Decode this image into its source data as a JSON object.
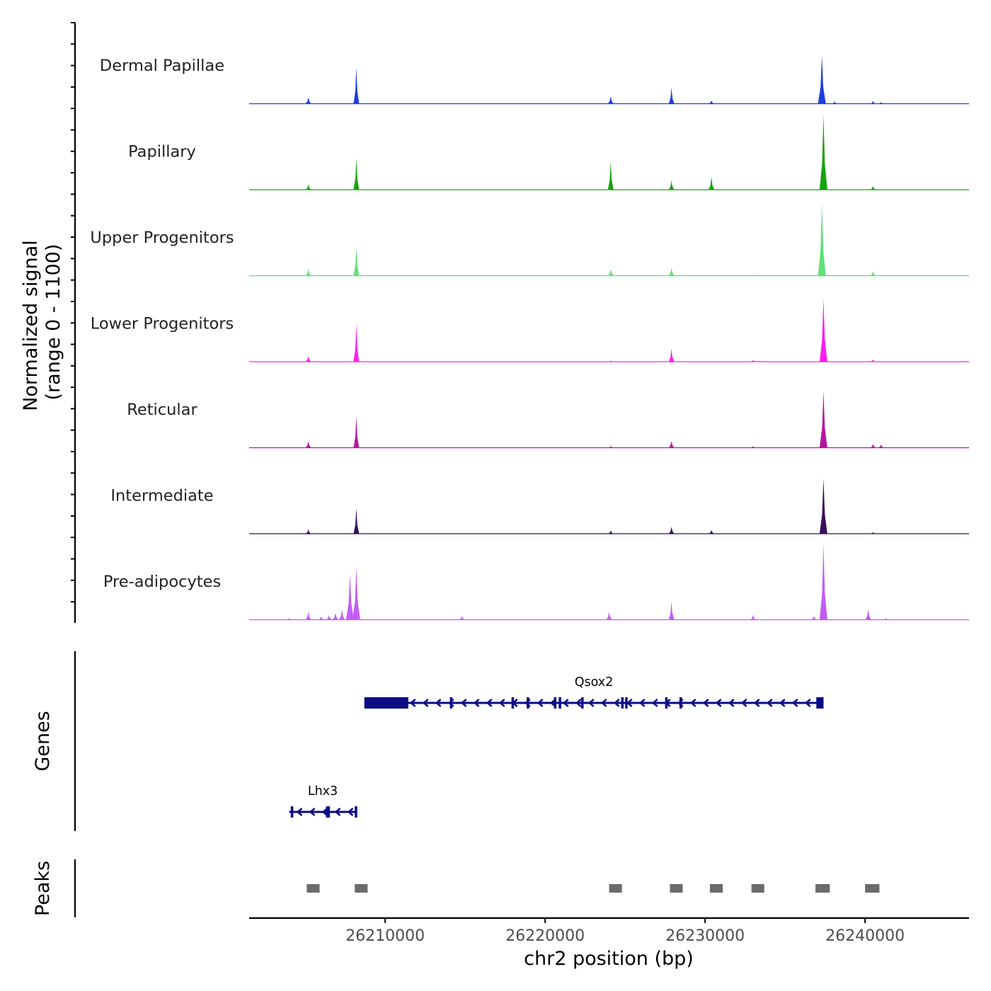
{
  "chart_data": {
    "type": "area",
    "title": "",
    "xlabel": "chr2 position (bp)",
    "ylabel_line1": "Normalized signal",
    "ylabel_line2": "(range 0 - 1100)",
    "xlim": [
      26201500,
      26246500
    ],
    "ylim": [
      0,
      1100
    ],
    "x_ticks": [
      26210000,
      26220000,
      26230000,
      26240000
    ],
    "x_tick_labels": [
      "26210000",
      "26220000",
      "26230000",
      "26240000"
    ],
    "series": [
      {
        "name": "Dermal Papillae",
        "color": "#1c3fe0",
        "peaks": [
          [
            26205200,
            120
          ],
          [
            26208200,
            680
          ],
          [
            26224100,
            140
          ],
          [
            26227900,
            300
          ],
          [
            26230400,
            60
          ],
          [
            26237300,
            900
          ],
          [
            26238100,
            40
          ],
          [
            26240500,
            50
          ],
          [
            26241000,
            30
          ]
        ]
      },
      {
        "name": "Papillary",
        "color": "#17a40e",
        "peaks": [
          [
            26205200,
            100
          ],
          [
            26208200,
            590
          ],
          [
            26224100,
            530
          ],
          [
            26227900,
            170
          ],
          [
            26230400,
            240
          ],
          [
            26237400,
            1400
          ],
          [
            26240500,
            70
          ]
        ]
      },
      {
        "name": "Upper Progenitors",
        "color": "#5fe176",
        "peaks": [
          [
            26205200,
            130
          ],
          [
            26208200,
            530
          ],
          [
            26224100,
            120
          ],
          [
            26227900,
            150
          ],
          [
            26233000,
            20
          ],
          [
            26237300,
            1350
          ],
          [
            26240500,
            80
          ]
        ]
      },
      {
        "name": "Lower Progenitors",
        "color": "#ff1cf2",
        "peaks": [
          [
            26205200,
            110
          ],
          [
            26208200,
            710
          ],
          [
            26224100,
            20
          ],
          [
            26227900,
            240
          ],
          [
            26233000,
            30
          ],
          [
            26237400,
            1180
          ],
          [
            26240500,
            40
          ]
        ]
      },
      {
        "name": "Reticular",
        "color": "#b3189f",
        "peaks": [
          [
            26205200,
            120
          ],
          [
            26208200,
            590
          ],
          [
            26224100,
            30
          ],
          [
            26227900,
            130
          ],
          [
            26233000,
            30
          ],
          [
            26237400,
            1060
          ],
          [
            26240500,
            70
          ],
          [
            26241000,
            60
          ]
        ]
      },
      {
        "name": "Intermediate",
        "color": "#3a0d5a",
        "peaks": [
          [
            26205200,
            80
          ],
          [
            26208200,
            480
          ],
          [
            26224100,
            60
          ],
          [
            26227900,
            130
          ],
          [
            26230400,
            70
          ],
          [
            26237400,
            1030
          ],
          [
            26240500,
            30
          ]
        ]
      },
      {
        "name": "Pre-adipocytes",
        "color": "#c45df5",
        "peaks": [
          [
            26204000,
            30
          ],
          [
            26205200,
            150
          ],
          [
            26206000,
            60
          ],
          [
            26206500,
            90
          ],
          [
            26206900,
            130
          ],
          [
            26207300,
            200
          ],
          [
            26207800,
            860
          ],
          [
            26208200,
            980
          ],
          [
            26214800,
            70
          ],
          [
            26224000,
            150
          ],
          [
            26227900,
            340
          ],
          [
            26233000,
            90
          ],
          [
            26236800,
            70
          ],
          [
            26237400,
            1420
          ],
          [
            26240200,
            200
          ],
          [
            26241300,
            30
          ]
        ]
      }
    ]
  },
  "labels": {
    "genes_axis": "Genes",
    "peaks_axis": "Peaks"
  },
  "genes": [
    {
      "name": "Qsox2",
      "strand": "-",
      "start": 26208700,
      "end": 26237400,
      "row": 1,
      "exons": [
        [
          26208700,
          26211450
        ],
        [
          26214050,
          26214150
        ],
        [
          26217900,
          26218000
        ],
        [
          26218850,
          26218950
        ],
        [
          26220550,
          26220650
        ],
        [
          26220850,
          26220950
        ],
        [
          26222250,
          26222350
        ],
        [
          26224750,
          26224850
        ],
        [
          26225000,
          26225150
        ],
        [
          26227500,
          26227600
        ],
        [
          26228400,
          26228500
        ],
        [
          26236950,
          26237400
        ]
      ]
    },
    {
      "name": "Lhx3",
      "strand": "-",
      "start": 26204000,
      "end": 26208200,
      "row": 2,
      "exons": [
        [
          26204100,
          26204200
        ],
        [
          26206300,
          26206550
        ],
        [
          26208100,
          26208200
        ]
      ]
    }
  ],
  "peaks": [
    [
      26205100,
      26205900
    ],
    [
      26208100,
      26208900
    ],
    [
      26224000,
      26224800
    ],
    [
      26227800,
      26228600
    ],
    [
      26230300,
      26231100
    ],
    [
      26232900,
      26233700
    ],
    [
      26236900,
      26237800
    ],
    [
      26240000,
      26240900
    ]
  ]
}
